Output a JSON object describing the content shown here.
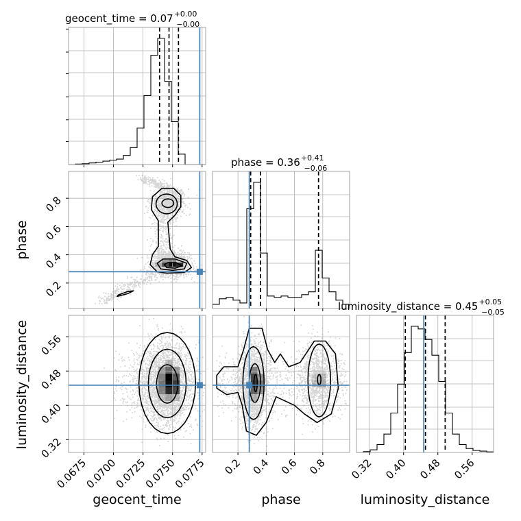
{
  "chart_data": {
    "type": "corner",
    "parameters": [
      {
        "name": "geocent_time",
        "title": "geocent_time = 0.07",
        "title_sup": "+0.00",
        "title_sub": "−0.00",
        "xlabel": "geocent_time",
        "range": [
          0.0662,
          0.0778
        ],
        "ticks": [
          0.0675,
          0.07,
          0.0725,
          0.075,
          0.0775
        ],
        "tick_labels": [
          "0.0675",
          "0.0700",
          "0.0725",
          "0.0750",
          "0.0775"
        ],
        "truth": 0.0773,
        "quantiles": [
          0.0739,
          0.0747,
          0.0755
        ],
        "hist_edges_start": 0.0662,
        "hist_bin_width": 0.00058,
        "hist_counts": [
          0,
          0.4,
          0.6,
          1.2,
          1.8,
          2.6,
          3.3,
          4.2,
          7.0,
          13.0,
          28.0,
          53.0,
          84.0,
          97.0,
          64.0,
          33.0,
          8.0,
          0,
          0,
          0
        ]
      },
      {
        "name": "phase",
        "title": "phase = 0.36",
        "title_sup": "+0.41",
        "title_sub": "−0.06",
        "xlabel": "phase",
        "ylabel": "phase",
        "range": [
          0.02,
          0.99
        ],
        "ticks": [
          0.2,
          0.4,
          0.6,
          0.8
        ],
        "tick_labels": [
          "0.2",
          "0.4",
          "0.6",
          "0.8"
        ],
        "truth": 0.28,
        "quantiles": [
          0.29,
          0.36,
          0.77
        ],
        "hist_edges_start": 0.02,
        "hist_bin_width": 0.0485,
        "hist_counts": [
          3,
          7,
          8,
          6,
          4,
          72,
          91,
          40,
          9,
          8,
          9,
          8,
          8,
          10,
          12,
          42,
          22,
          12,
          6,
          3
        ]
      },
      {
        "name": "luminosity_distance",
        "title": "luminosity_distance = 0.45",
        "title_sup": "+0.05",
        "title_sub": "−0.05",
        "xlabel": "luminosity_distance",
        "ylabel": "luminosity_distance",
        "range": [
          0.29,
          0.61
        ],
        "ticks": [
          0.32,
          0.4,
          0.48,
          0.56
        ],
        "tick_labels": [
          "0.32",
          "0.40",
          "0.48",
          "0.56"
        ],
        "truth": 0.447,
        "quantiles": [
          0.404,
          0.451,
          0.497
        ],
        "hist_edges_start": 0.29,
        "hist_bin_width": 0.016,
        "hist_counts": [
          0,
          0.6,
          2,
          6,
          14,
          30,
          52,
          76,
          96,
          94,
          86,
          74,
          54,
          30,
          14,
          6,
          3,
          1.5,
          1,
          0.4
        ]
      }
    ],
    "marker_color": "#4682b4",
    "truth_point_geocent_phase": [
      0.0773,
      0.28
    ],
    "truth_point_geocent_distance": [
      0.0773,
      0.447
    ],
    "truth_point_phase_distance": [
      0.28,
      0.447
    ]
  }
}
